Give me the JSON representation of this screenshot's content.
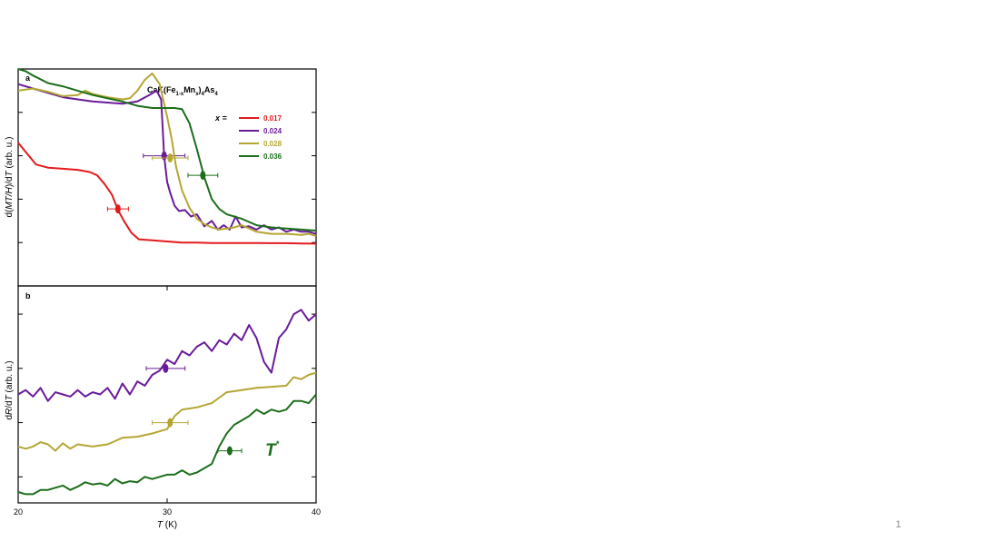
{
  "slide": {
    "number": "1"
  },
  "chart_data": [
    {
      "panel": "a",
      "type": "line",
      "title": "CaK(Fe1-xMn x)4As4",
      "title_parts": {
        "p1": "CaK(Fe",
        "s1": "1-x",
        "p2": "Mn",
        "s2": "x",
        "p3": ")",
        "s3": "4",
        "p4": "As",
        "s4": "4"
      },
      "ylabel": "d(MT/H)/dT (arb. u.)",
      "ylabel_parts": {
        "a": "d(",
        "b": "MT/H",
        "c": ")/d",
        "d": "T",
        "e": " (arb. u.)"
      },
      "xlim": [
        20,
        40
      ],
      "ylim": [
        0,
        10
      ],
      "y_ticks": [
        2,
        4,
        6,
        8
      ],
      "legend_title": "x =",
      "legend_position": "top-right",
      "series": [
        {
          "name": "0.017",
          "color": "#e31a1c",
          "x": [
            20,
            20.6,
            21.2,
            22,
            23,
            24,
            24.8,
            25.3,
            25.8,
            26.3,
            26.7,
            27.1,
            27.6,
            28.1,
            29,
            30,
            31,
            32,
            33,
            34,
            35,
            36,
            37,
            38,
            39,
            40
          ],
          "y": [
            6.6,
            6.1,
            5.6,
            5.45,
            5.4,
            5.35,
            5.25,
            5.1,
            4.7,
            4.2,
            3.5,
            3.0,
            2.45,
            2.15,
            2.1,
            2.05,
            2.0,
            2.0,
            1.98,
            1.98,
            1.98,
            1.98,
            1.97,
            1.97,
            1.96,
            1.95
          ],
          "marker": {
            "x": 26.7,
            "y": 3.55,
            "xerr": 0.7
          }
        },
        {
          "name": "0.024",
          "color": "#6a1b9a",
          "x": [
            20,
            21,
            22,
            23,
            24,
            25,
            26,
            27,
            28,
            28.8,
            29.3,
            29.6,
            29.8,
            30.0,
            30.2,
            30.5,
            30.8,
            31.2,
            31.6,
            32,
            32.5,
            33,
            33.4,
            33.8,
            34.2,
            34.6,
            35,
            35.5,
            36,
            36.5,
            37,
            37.5,
            38,
            38.5,
            39,
            39.5,
            40
          ],
          "y": [
            9.3,
            9.1,
            8.9,
            8.7,
            8.6,
            8.5,
            8.45,
            8.4,
            8.5,
            8.8,
            9.0,
            8.6,
            6.0,
            4.8,
            4.3,
            3.7,
            3.45,
            3.5,
            3.2,
            3.3,
            2.75,
            3.0,
            2.6,
            2.8,
            2.6,
            3.2,
            2.7,
            2.75,
            2.6,
            2.8,
            2.6,
            2.7,
            2.5,
            2.6,
            2.5,
            2.5,
            2.4
          ],
          "marker": {
            "x": 29.8,
            "y": 6.0,
            "xerr": 1.4
          }
        },
        {
          "name": "0.028",
          "color": "#b5a632",
          "x": [
            20,
            21,
            22,
            23,
            24,
            24.5,
            25,
            26,
            27,
            27.5,
            28,
            28.5,
            29,
            29.5,
            30,
            30.3,
            30.6,
            31,
            31.5,
            32,
            32.5,
            33,
            33.5,
            34,
            34.5,
            35,
            35.5,
            36,
            37,
            38,
            39,
            39.5,
            40
          ],
          "y": [
            9.0,
            9.1,
            8.95,
            8.75,
            8.8,
            9.0,
            8.85,
            8.7,
            8.6,
            8.65,
            9.0,
            9.5,
            9.8,
            9.3,
            7.8,
            6.8,
            5.5,
            4.4,
            3.6,
            3.1,
            2.85,
            2.7,
            2.6,
            2.65,
            2.7,
            2.8,
            2.65,
            2.5,
            2.4,
            2.4,
            2.35,
            2.4,
            2.3
          ],
          "marker": {
            "x": 30.2,
            "y": 5.9,
            "xerr": 1.2
          }
        },
        {
          "name": "0.036",
          "color": "#1b6e1b",
          "x": [
            20,
            20.5,
            21,
            22,
            23,
            24,
            25,
            26,
            27,
            28,
            29,
            30,
            30.5,
            31,
            31.5,
            32,
            32.5,
            33,
            33.5,
            34,
            34.5,
            35,
            35.5,
            36,
            37,
            38,
            39,
            40
          ],
          "y": [
            10.0,
            9.9,
            9.7,
            9.35,
            9.2,
            9.0,
            8.8,
            8.65,
            8.5,
            8.3,
            8.2,
            8.2,
            8.2,
            8.15,
            7.5,
            6.3,
            5.0,
            4.0,
            3.55,
            3.3,
            3.2,
            3.1,
            2.95,
            2.8,
            2.7,
            2.65,
            2.6,
            2.55
          ],
          "marker": {
            "x": 32.4,
            "y": 5.1,
            "xerr": 1.0
          }
        }
      ]
    },
    {
      "panel": "b",
      "type": "line",
      "ylabel": "dR/dT (arb. u.)",
      "ylabel_parts": {
        "a": "d",
        "b": "R",
        "c": "/d",
        "d": "T",
        "e": " (arb. u.)"
      },
      "xlabel": "T (K)",
      "xlabel_parts": {
        "a": "T",
        "b": " (K)"
      },
      "xlim": [
        20,
        40
      ],
      "x_ticks": [
        20,
        30,
        40
      ],
      "x_tick_labels": [
        "20",
        "30",
        "40"
      ],
      "ylim": [
        0,
        10
      ],
      "y_ticks": [
        1.2,
        3.7,
        6.2,
        8.7
      ],
      "annotation": {
        "text": "T",
        "sup": "*",
        "color": "#1b6e1b",
        "x": 36.9,
        "y": 2.4
      },
      "series": [
        {
          "name": "0.024",
          "color": "#6a1b9a",
          "x": [
            20,
            20.5,
            21,
            21.5,
            22,
            22.5,
            23,
            23.5,
            24,
            24.5,
            25,
            25.5,
            26,
            26.5,
            27,
            27.5,
            28,
            28.5,
            29,
            29.5,
            30,
            30.5,
            31,
            31.5,
            32,
            32.5,
            33,
            33.5,
            34,
            34.5,
            35,
            35.5,
            36,
            36.5,
            37,
            37.5,
            38,
            38.5,
            39,
            39.5,
            40
          ],
          "y": [
            5.0,
            5.2,
            4.9,
            5.3,
            4.7,
            5.1,
            5.0,
            4.9,
            5.2,
            4.9,
            5.1,
            5.0,
            5.3,
            4.8,
            5.5,
            5.0,
            5.6,
            5.4,
            5.9,
            6.1,
            6.6,
            6.4,
            7.0,
            6.8,
            7.2,
            7.4,
            7.0,
            7.5,
            7.3,
            7.8,
            7.5,
            8.2,
            7.6,
            6.5,
            6.0,
            7.6,
            8.0,
            8.7,
            8.9,
            8.4,
            8.7
          ],
          "marker": {
            "x": 29.9,
            "y": 6.2,
            "xerr": 1.3
          }
        },
        {
          "name": "0.028",
          "color": "#b5a632",
          "x": [
            20,
            20.5,
            21,
            21.5,
            22,
            22.5,
            23,
            23.5,
            24,
            24.5,
            25,
            26,
            27,
            28,
            29,
            30,
            30.5,
            31,
            32,
            33,
            34,
            35,
            36,
            37,
            38,
            38.5,
            39,
            39.5,
            40
          ],
          "y": [
            2.6,
            2.5,
            2.6,
            2.8,
            2.7,
            2.4,
            2.75,
            2.5,
            2.7,
            2.65,
            2.6,
            2.7,
            3.0,
            3.05,
            3.2,
            3.4,
            4.0,
            4.3,
            4.4,
            4.6,
            5.1,
            5.2,
            5.3,
            5.35,
            5.4,
            5.8,
            5.7,
            5.9,
            6.0
          ],
          "marker": {
            "x": 30.2,
            "y": 3.7,
            "xerr": 1.2
          }
        },
        {
          "name": "0.036",
          "color": "#1b6e1b",
          "x": [
            20,
            20.5,
            21,
            21.5,
            22,
            22.5,
            23,
            23.5,
            24,
            24.5,
            25,
            25.5,
            26,
            26.5,
            27,
            27.5,
            28,
            28.5,
            29,
            30,
            30.5,
            31,
            31.5,
            32,
            32.5,
            33,
            33.5,
            34,
            34.5,
            35,
            35.5,
            36,
            36.5,
            37,
            37.5,
            38,
            38.5,
            39,
            39.5,
            40
          ],
          "y": [
            0.5,
            0.4,
            0.4,
            0.6,
            0.6,
            0.7,
            0.8,
            0.6,
            0.75,
            0.95,
            0.85,
            0.9,
            0.8,
            1.1,
            0.9,
            1.0,
            0.95,
            1.2,
            1.1,
            1.3,
            1.3,
            1.5,
            1.3,
            1.4,
            1.6,
            1.8,
            2.6,
            3.2,
            3.6,
            3.8,
            4.0,
            4.3,
            4.1,
            4.3,
            4.2,
            4.3,
            4.7,
            4.7,
            4.6,
            5.0
          ],
          "marker": {
            "x": 34.2,
            "y": 2.4,
            "xerr": 0.8
          }
        }
      ]
    }
  ]
}
